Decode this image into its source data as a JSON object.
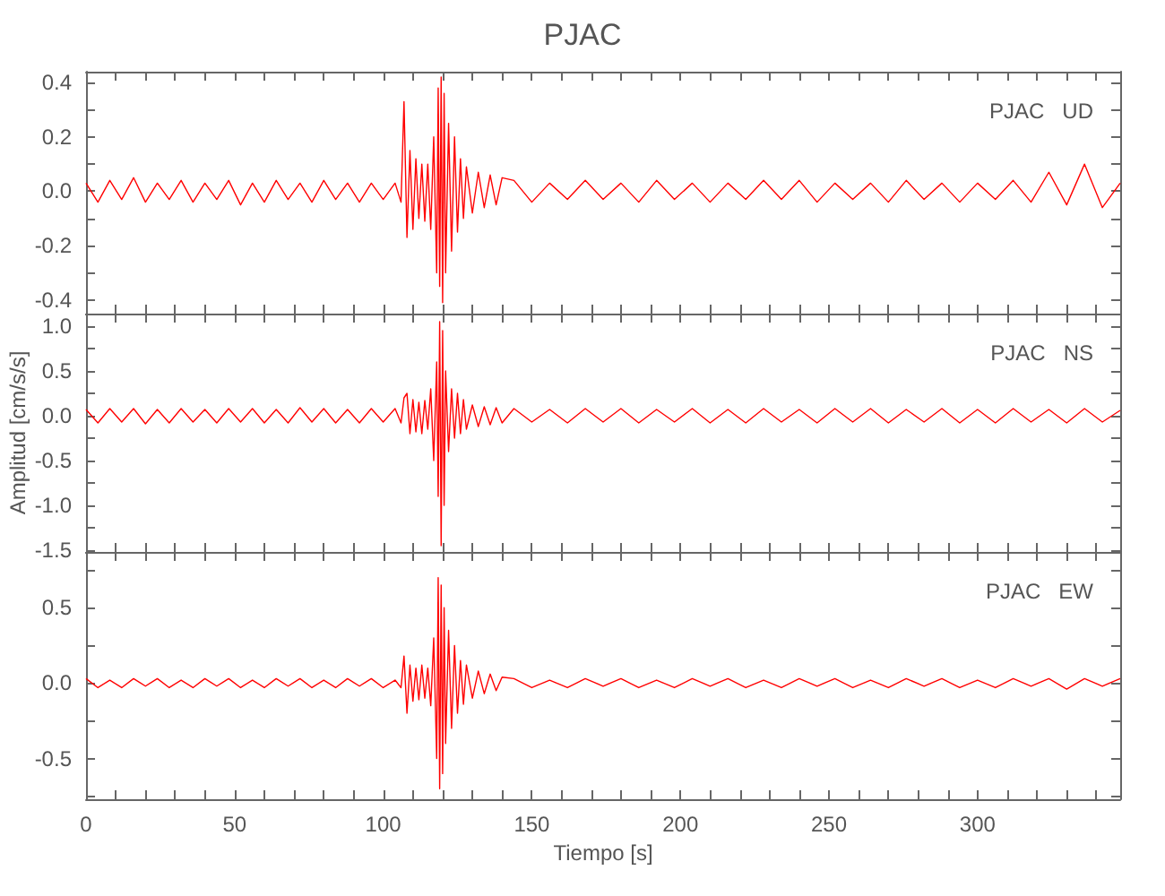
{
  "chart_data": [
    {
      "type": "line",
      "title": "PJAC",
      "annotations": [
        "PJAC   UD"
      ],
      "tick_labels": "y",
      "xlim": [
        0,
        348
      ],
      "xticks": [
        0,
        {
          "value": 10,
          "label": null
        },
        {
          "value": 20,
          "label": null
        },
        {
          "value": 30,
          "label": null
        },
        {
          "value": 40,
          "label": null
        },
        50,
        {
          "value": 60,
          "label": null
        },
        {
          "value": 70,
          "label": null
        },
        {
          "value": 80,
          "label": null
        },
        {
          "value": 90,
          "label": null
        },
        100,
        {
          "value": 110,
          "label": null
        },
        {
          "value": 120,
          "label": null
        },
        {
          "value": 130,
          "label": null
        },
        {
          "value": 140,
          "label": null
        },
        150,
        {
          "value": 160,
          "label": null
        },
        {
          "value": 170,
          "label": null
        },
        {
          "value": 180,
          "label": null
        },
        {
          "value": 190,
          "label": null
        },
        200,
        {
          "value": 210,
          "label": null
        },
        {
          "value": 220,
          "label": null
        },
        {
          "value": 230,
          "label": null
        },
        {
          "value": 240,
          "label": null
        },
        250,
        {
          "value": 260,
          "label": null
        },
        {
          "value": 270,
          "label": null
        },
        {
          "value": 280,
          "label": null
        },
        {
          "value": 290,
          "label": null
        },
        300,
        {
          "value": 310,
          "label": null
        },
        {
          "value": 320,
          "label": null
        },
        {
          "value": 330,
          "label": null
        },
        {
          "value": 340,
          "label": null
        }
      ],
      "ylim": [
        -0.45,
        0.44
      ],
      "yticks": [
        -0.4,
        {
          "value": -0.3,
          "label": null
        },
        -0.2,
        {
          "value": -0.1,
          "label": null
        },
        {
          "value": 0,
          "label": "0.0"
        },
        {
          "value": 0.1,
          "label": null
        },
        0.2,
        {
          "value": 0.3,
          "label": null
        },
        0.4
      ],
      "x": [
        0,
        4,
        8,
        12,
        16,
        20,
        24,
        28,
        32,
        36,
        40,
        44,
        48,
        52,
        56,
        60,
        64,
        68,
        72,
        76,
        80,
        84,
        88,
        92,
        96,
        100,
        104,
        106,
        107,
        108,
        109,
        110,
        111,
        112,
        113,
        114,
        115,
        116,
        117,
        118,
        118.5,
        119,
        119.5,
        120,
        120.5,
        121,
        122,
        123,
        124,
        125,
        126,
        127,
        128,
        130,
        132,
        134,
        136,
        138,
        140,
        144,
        150,
        156,
        162,
        168,
        174,
        180,
        186,
        192,
        198,
        204,
        210,
        216,
        222,
        228,
        234,
        240,
        246,
        252,
        258,
        264,
        270,
        276,
        282,
        288,
        294,
        300,
        306,
        312,
        318,
        324,
        330,
        336,
        342,
        348
      ],
      "series": [
        {
          "color": "#ff0000",
          "values": [
            0.03,
            -0.04,
            0.04,
            -0.03,
            0.05,
            -0.04,
            0.03,
            -0.03,
            0.04,
            -0.04,
            0.03,
            -0.03,
            0.04,
            -0.05,
            0.03,
            -0.04,
            0.04,
            -0.03,
            0.03,
            -0.04,
            0.04,
            -0.03,
            0.03,
            -0.04,
            0.03,
            -0.03,
            0.03,
            -0.04,
            0.33,
            -0.17,
            0.15,
            -0.14,
            0.12,
            -0.1,
            0.1,
            -0.11,
            0.1,
            -0.14,
            0.2,
            -0.3,
            0.38,
            -0.35,
            0.42,
            -0.41,
            0.36,
            -0.3,
            0.25,
            -0.22,
            0.2,
            -0.15,
            0.12,
            -0.1,
            0.09,
            -0.08,
            0.07,
            -0.06,
            0.06,
            -0.05,
            0.05,
            0.04,
            -0.04,
            0.03,
            -0.03,
            0.04,
            -0.03,
            0.03,
            -0.04,
            0.04,
            -0.03,
            0.03,
            -0.04,
            0.03,
            -0.03,
            0.04,
            -0.03,
            0.04,
            -0.04,
            0.03,
            -0.03,
            0.03,
            -0.04,
            0.04,
            -0.03,
            0.03,
            -0.04,
            0.03,
            -0.03,
            0.04,
            -0.04,
            0.07,
            -0.05,
            0.1,
            -0.06,
            0.03
          ]
        }
      ]
    },
    {
      "type": "line",
      "ylabel": "Amplitud [cm/s/s]",
      "annotations": [
        "PJAC   NS"
      ],
      "tick_labels": "y",
      "xlim": [
        0,
        348
      ],
      "xticks": [
        0,
        {
          "value": 10,
          "label": null
        },
        {
          "value": 20,
          "label": null
        },
        {
          "value": 30,
          "label": null
        },
        {
          "value": 40,
          "label": null
        },
        50,
        {
          "value": 60,
          "label": null
        },
        {
          "value": 70,
          "label": null
        },
        {
          "value": 80,
          "label": null
        },
        {
          "value": 90,
          "label": null
        },
        100,
        {
          "value": 110,
          "label": null
        },
        {
          "value": 120,
          "label": null
        },
        {
          "value": 130,
          "label": null
        },
        {
          "value": 140,
          "label": null
        },
        150,
        {
          "value": 160,
          "label": null
        },
        {
          "value": 170,
          "label": null
        },
        {
          "value": 180,
          "label": null
        },
        {
          "value": 190,
          "label": null
        },
        200,
        {
          "value": 210,
          "label": null
        },
        {
          "value": 220,
          "label": null
        },
        {
          "value": 230,
          "label": null
        },
        {
          "value": 240,
          "label": null
        },
        250,
        {
          "value": 260,
          "label": null
        },
        {
          "value": 270,
          "label": null
        },
        {
          "value": 280,
          "label": null
        },
        {
          "value": 290,
          "label": null
        },
        300,
        {
          "value": 310,
          "label": null
        },
        {
          "value": 320,
          "label": null
        },
        {
          "value": 330,
          "label": null
        },
        {
          "value": 340,
          "label": null
        }
      ],
      "ylim": [
        -1.52,
        1.14
      ],
      "yticks": [
        -1.5,
        {
          "value": -1.25,
          "label": null
        },
        {
          "value": -1,
          "label": "-1.0"
        },
        {
          "value": -0.75,
          "label": null
        },
        -0.5,
        {
          "value": -0.25,
          "label": null
        },
        {
          "value": 0,
          "label": "0.0"
        },
        {
          "value": 0.25,
          "label": null
        },
        0.5,
        {
          "value": 0.75,
          "label": null
        },
        {
          "value": 1,
          "label": "1.0"
        }
      ],
      "x": [
        0,
        4,
        8,
        12,
        16,
        20,
        24,
        28,
        32,
        36,
        40,
        44,
        48,
        52,
        56,
        60,
        64,
        68,
        72,
        76,
        80,
        84,
        88,
        92,
        96,
        100,
        104,
        106,
        107,
        108,
        109,
        110,
        111,
        112,
        113,
        114,
        115,
        116,
        117,
        118,
        118.5,
        119,
        119.5,
        120,
        120.5,
        121,
        122,
        123,
        124,
        125,
        126,
        127,
        128,
        130,
        132,
        134,
        136,
        138,
        140,
        144,
        150,
        156,
        162,
        168,
        174,
        180,
        186,
        192,
        198,
        204,
        210,
        216,
        222,
        228,
        234,
        240,
        246,
        252,
        258,
        264,
        270,
        276,
        282,
        288,
        294,
        300,
        306,
        312,
        318,
        324,
        330,
        336,
        342,
        348
      ],
      "series": [
        {
          "color": "#ff0000",
          "values": [
            0.07,
            -0.08,
            0.08,
            -0.07,
            0.08,
            -0.09,
            0.07,
            -0.08,
            0.08,
            -0.07,
            0.07,
            -0.08,
            0.08,
            -0.07,
            0.08,
            -0.08,
            0.07,
            -0.08,
            0.09,
            -0.07,
            0.08,
            -0.08,
            0.07,
            -0.08,
            0.08,
            -0.07,
            0.08,
            -0.08,
            0.2,
            0.25,
            -0.2,
            0.18,
            -0.18,
            0.15,
            -0.2,
            0.17,
            -0.15,
            0.3,
            -0.5,
            0.6,
            -0.9,
            1.05,
            -1.45,
            0.95,
            -1.0,
            0.5,
            -0.4,
            0.3,
            -0.25,
            0.25,
            -0.2,
            0.18,
            -0.15,
            0.12,
            -0.12,
            0.1,
            -0.1,
            0.09,
            -0.08,
            0.08,
            -0.07,
            0.07,
            -0.08,
            0.08,
            -0.07,
            0.08,
            -0.08,
            0.07,
            -0.07,
            0.08,
            -0.08,
            0.07,
            -0.08,
            0.08,
            -0.07,
            0.07,
            -0.08,
            0.08,
            -0.07,
            0.08,
            -0.08,
            0.07,
            -0.07,
            0.08,
            -0.08,
            0.07,
            -0.08,
            0.08,
            -0.07,
            0.07,
            -0.08,
            0.08,
            -0.07,
            0.06
          ]
        }
      ]
    },
    {
      "type": "line",
      "xlabel": "Tiempo [s]",
      "annotations": [
        "PJAC   EW"
      ],
      "xlim": [
        0,
        348
      ],
      "xticks": [
        0,
        {
          "value": 10,
          "label": null
        },
        {
          "value": 20,
          "label": null
        },
        {
          "value": 30,
          "label": null
        },
        {
          "value": 40,
          "label": null
        },
        50,
        {
          "value": 60,
          "label": null
        },
        {
          "value": 70,
          "label": null
        },
        {
          "value": 80,
          "label": null
        },
        {
          "value": 90,
          "label": null
        },
        100,
        {
          "value": 110,
          "label": null
        },
        {
          "value": 120,
          "label": null
        },
        {
          "value": 130,
          "label": null
        },
        {
          "value": 140,
          "label": null
        },
        150,
        {
          "value": 160,
          "label": null
        },
        {
          "value": 170,
          "label": null
        },
        {
          "value": 180,
          "label": null
        },
        {
          "value": 190,
          "label": null
        },
        200,
        {
          "value": 210,
          "label": null
        },
        {
          "value": 220,
          "label": null
        },
        {
          "value": 230,
          "label": null
        },
        {
          "value": 240,
          "label": null
        },
        250,
        {
          "value": 260,
          "label": null
        },
        {
          "value": 270,
          "label": null
        },
        {
          "value": 280,
          "label": null
        },
        {
          "value": 290,
          "label": null
        },
        300,
        {
          "value": 310,
          "label": null
        },
        {
          "value": 320,
          "label": null
        },
        {
          "value": 330,
          "label": null
        },
        {
          "value": 340,
          "label": null
        }
      ],
      "ylim": [
        -0.77,
        0.87
      ],
      "yticks": [
        {
          "value": -0.75,
          "label": null
        },
        -0.5,
        {
          "value": -0.25,
          "label": null
        },
        {
          "value": 0,
          "label": "0.0"
        },
        {
          "value": 0.25,
          "label": null
        },
        0.5,
        {
          "value": 0.75,
          "label": null
        }
      ],
      "x": [
        0,
        4,
        8,
        12,
        16,
        20,
        24,
        28,
        32,
        36,
        40,
        44,
        48,
        52,
        56,
        60,
        64,
        68,
        72,
        76,
        80,
        84,
        88,
        92,
        96,
        100,
        104,
        106,
        107,
        108,
        109,
        110,
        111,
        112,
        113,
        114,
        115,
        116,
        117,
        118,
        118.5,
        119,
        119.5,
        120,
        120.5,
        121,
        122,
        123,
        124,
        125,
        126,
        127,
        128,
        130,
        132,
        134,
        136,
        138,
        140,
        144,
        150,
        156,
        162,
        168,
        174,
        180,
        186,
        192,
        198,
        204,
        210,
        216,
        222,
        228,
        234,
        240,
        246,
        252,
        258,
        264,
        270,
        276,
        282,
        288,
        294,
        300,
        306,
        312,
        318,
        324,
        330,
        336,
        342,
        348
      ],
      "series": [
        {
          "color": "#ff0000",
          "values": [
            0.03,
            -0.03,
            0.02,
            -0.03,
            0.03,
            -0.02,
            0.03,
            -0.03,
            0.02,
            -0.03,
            0.03,
            -0.02,
            0.03,
            -0.03,
            0.02,
            -0.03,
            0.03,
            -0.02,
            0.03,
            -0.03,
            0.02,
            -0.03,
            0.03,
            -0.02,
            0.03,
            -0.03,
            0.02,
            -0.03,
            0.18,
            -0.2,
            0.12,
            -0.12,
            0.1,
            -0.11,
            0.12,
            -0.1,
            0.1,
            -0.15,
            0.3,
            -0.5,
            0.7,
            -0.7,
            0.65,
            -0.6,
            0.5,
            -0.4,
            0.35,
            -0.3,
            0.25,
            -0.2,
            0.15,
            -0.14,
            0.12,
            -0.1,
            0.08,
            -0.07,
            0.06,
            -0.05,
            0.04,
            0.03,
            -0.03,
            0.02,
            -0.03,
            0.03,
            -0.02,
            0.03,
            -0.03,
            0.02,
            -0.03,
            0.03,
            -0.02,
            0.03,
            -0.03,
            0.02,
            -0.03,
            0.03,
            -0.02,
            0.03,
            -0.03,
            0.02,
            -0.03,
            0.03,
            -0.02,
            0.03,
            -0.03,
            0.02,
            -0.03,
            0.03,
            -0.02,
            0.03,
            -0.04,
            0.03,
            -0.02,
            0.03
          ]
        }
      ]
    }
  ]
}
